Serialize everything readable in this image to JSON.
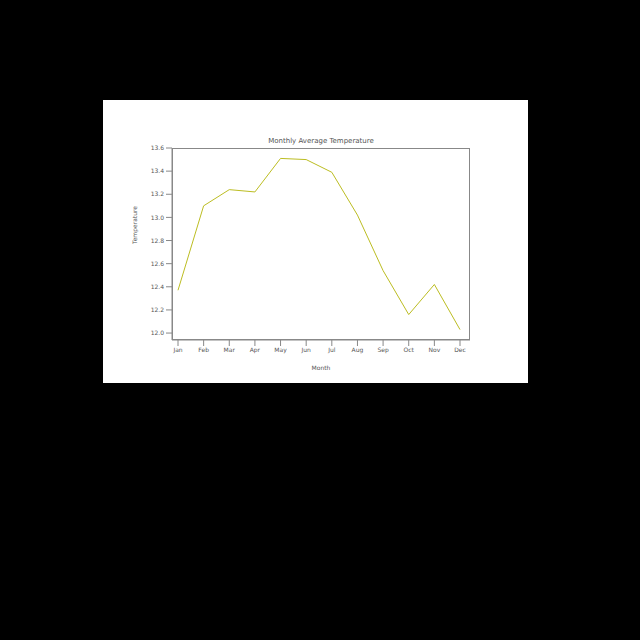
{
  "chart_data": {
    "type": "line",
    "title": "Monthly Average Temperature",
    "x_label": "Month",
    "y_label": "Temperature",
    "categories": [
      "Jan",
      "Feb",
      "Mar",
      "Apr",
      "May",
      "Jun",
      "Jul",
      "Aug",
      "Sep",
      "Oct",
      "Nov",
      "Dec"
    ],
    "values": [
      12.37,
      13.1,
      13.24,
      13.22,
      13.51,
      13.5,
      13.39,
      13.02,
      12.54,
      12.16,
      12.42,
      12.03
    ],
    "color": "#bcbd22",
    "ylim": [
      11.94,
      13.6
    ],
    "yticks": [
      {
        "value": 12,
        "label": "12.0"
      },
      {
        "value": 12.2,
        "label": "12.2"
      },
      {
        "value": 12.4,
        "label": "12.4"
      },
      {
        "value": 12.6,
        "label": "12.6"
      },
      {
        "value": 12.8,
        "label": "12.8"
      },
      {
        "value": 13,
        "label": "13.0"
      },
      {
        "value": 13.2,
        "label": "13.2"
      },
      {
        "value": 13.4,
        "label": "13.4"
      },
      {
        "value": 13.6,
        "label": "13.6"
      }
    ],
    "grid": false
  }
}
